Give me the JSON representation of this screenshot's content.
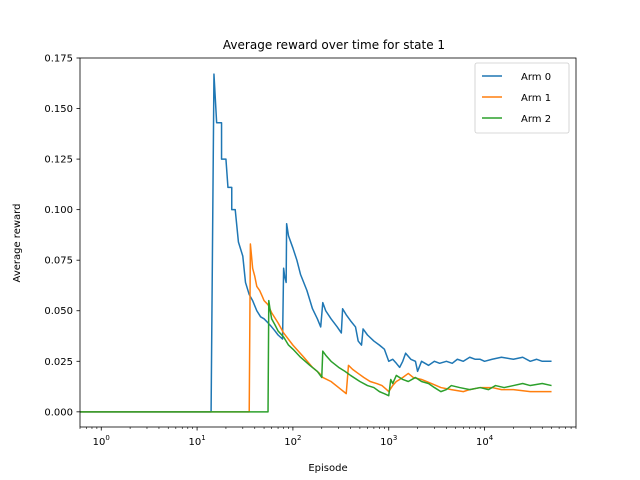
{
  "chart_data": {
    "type": "line",
    "title": "Average reward over time for state 1",
    "xlabel": "Episode",
    "ylabel": "Average reward",
    "xscale": "log",
    "xlim": [
      0.6,
      90000
    ],
    "ylim": [
      -0.0075,
      0.175
    ],
    "grid": false,
    "legend_position": "top-right",
    "x_ticks": [
      {
        "value": 1,
        "base": "10",
        "exp": "0"
      },
      {
        "value": 10,
        "base": "10",
        "exp": "1"
      },
      {
        "value": 100,
        "base": "10",
        "exp": "2"
      },
      {
        "value": 1000,
        "base": "10",
        "exp": "3"
      },
      {
        "value": 10000,
        "base": "10",
        "exp": "4"
      }
    ],
    "y_ticks": [
      "0.000",
      "0.025",
      "0.050",
      "0.075",
      "0.100",
      "0.125",
      "0.150",
      "0.175"
    ],
    "series": [
      {
        "name": "Arm 0",
        "color": "#1f77b4",
        "points": [
          [
            0.6,
            0
          ],
          [
            14,
            0
          ],
          [
            15,
            0.167
          ],
          [
            16,
            0.143
          ],
          [
            18,
            0.143
          ],
          [
            18,
            0.125
          ],
          [
            20,
            0.125
          ],
          [
            21,
            0.111
          ],
          [
            23,
            0.111
          ],
          [
            23,
            0.1
          ],
          [
            25,
            0.1
          ],
          [
            27,
            0.084
          ],
          [
            30,
            0.077
          ],
          [
            32,
            0.064
          ],
          [
            35,
            0.058
          ],
          [
            38,
            0.055
          ],
          [
            42,
            0.05
          ],
          [
            46,
            0.047
          ],
          [
            50,
            0.046
          ],
          [
            55,
            0.044
          ],
          [
            60,
            0.042
          ],
          [
            65,
            0.04
          ],
          [
            70,
            0.038
          ],
          [
            78,
            0.036
          ],
          [
            80,
            0.071
          ],
          [
            82,
            0.067
          ],
          [
            85,
            0.064
          ],
          [
            86,
            0.093
          ],
          [
            90,
            0.087
          ],
          [
            100,
            0.081
          ],
          [
            110,
            0.075
          ],
          [
            120,
            0.068
          ],
          [
            140,
            0.06
          ],
          [
            160,
            0.051
          ],
          [
            180,
            0.046
          ],
          [
            195,
            0.042
          ],
          [
            205,
            0.054
          ],
          [
            220,
            0.05
          ],
          [
            250,
            0.046
          ],
          [
            290,
            0.042
          ],
          [
            320,
            0.039
          ],
          [
            330,
            0.051
          ],
          [
            360,
            0.048
          ],
          [
            400,
            0.045
          ],
          [
            450,
            0.042
          ],
          [
            480,
            0.035
          ],
          [
            520,
            0.033
          ],
          [
            540,
            0.041
          ],
          [
            600,
            0.038
          ],
          [
            700,
            0.035
          ],
          [
            800,
            0.033
          ],
          [
            900,
            0.031
          ],
          [
            1000,
            0.025
          ],
          [
            1100,
            0.026
          ],
          [
            1200,
            0.024
          ],
          [
            1300,
            0.022
          ],
          [
            1400,
            0.025
          ],
          [
            1500,
            0.029
          ],
          [
            1700,
            0.026
          ],
          [
            1900,
            0.025
          ],
          [
            2000,
            0.02
          ],
          [
            2200,
            0.025
          ],
          [
            2600,
            0.023
          ],
          [
            3000,
            0.025
          ],
          [
            3400,
            0.024
          ],
          [
            4000,
            0.025
          ],
          [
            4600,
            0.024
          ],
          [
            5200,
            0.026
          ],
          [
            6000,
            0.025
          ],
          [
            7000,
            0.027
          ],
          [
            8000,
            0.026
          ],
          [
            9000,
            0.026
          ],
          [
            10000,
            0.025
          ],
          [
            12000,
            0.026
          ],
          [
            15000,
            0.027
          ],
          [
            20000,
            0.026
          ],
          [
            25000,
            0.027
          ],
          [
            30000,
            0.025
          ],
          [
            35000,
            0.026
          ],
          [
            40000,
            0.025
          ],
          [
            45000,
            0.025
          ],
          [
            50000,
            0.025
          ]
        ]
      },
      {
        "name": "Arm 1",
        "color": "#ff7f0e",
        "points": [
          [
            0.6,
            0
          ],
          [
            35,
            0
          ],
          [
            36,
            0.083
          ],
          [
            37,
            0.077
          ],
          [
            38,
            0.071
          ],
          [
            40,
            0.067
          ],
          [
            42,
            0.062
          ],
          [
            45,
            0.06
          ],
          [
            48,
            0.057
          ],
          [
            50,
            0.055
          ],
          [
            55,
            0.053
          ],
          [
            60,
            0.049
          ],
          [
            70,
            0.044
          ],
          [
            80,
            0.039
          ],
          [
            100,
            0.033
          ],
          [
            130,
            0.027
          ],
          [
            160,
            0.022
          ],
          [
            190,
            0.019
          ],
          [
            205,
            0.017
          ],
          [
            250,
            0.015
          ],
          [
            300,
            0.012
          ],
          [
            360,
            0.009
          ],
          [
            380,
            0.023
          ],
          [
            420,
            0.021
          ],
          [
            480,
            0.019
          ],
          [
            550,
            0.017
          ],
          [
            640,
            0.015
          ],
          [
            750,
            0.014
          ],
          [
            850,
            0.013
          ],
          [
            950,
            0.011
          ],
          [
            1000,
            0.01
          ],
          [
            1100,
            0.013
          ],
          [
            1200,
            0.015
          ],
          [
            1300,
            0.016
          ],
          [
            1400,
            0.017
          ],
          [
            1600,
            0.019
          ],
          [
            1800,
            0.017
          ],
          [
            2200,
            0.016
          ],
          [
            2800,
            0.014
          ],
          [
            3500,
            0.012
          ],
          [
            4500,
            0.011
          ],
          [
            6000,
            0.01
          ],
          [
            7000,
            0.011
          ],
          [
            9000,
            0.012
          ],
          [
            12000,
            0.012
          ],
          [
            15000,
            0.011
          ],
          [
            20000,
            0.011
          ],
          [
            30000,
            0.01
          ],
          [
            40000,
            0.01
          ],
          [
            50000,
            0.01
          ]
        ]
      },
      {
        "name": "Arm 2",
        "color": "#2ca02c",
        "points": [
          [
            0.6,
            0
          ],
          [
            55,
            0
          ],
          [
            56,
            0.055
          ],
          [
            58,
            0.05
          ],
          [
            60,
            0.046
          ],
          [
            65,
            0.043
          ],
          [
            70,
            0.04
          ],
          [
            80,
            0.037
          ],
          [
            90,
            0.033
          ],
          [
            100,
            0.031
          ],
          [
            120,
            0.027
          ],
          [
            150,
            0.023
          ],
          [
            180,
            0.02
          ],
          [
            200,
            0.017
          ],
          [
            205,
            0.03
          ],
          [
            220,
            0.028
          ],
          [
            250,
            0.025
          ],
          [
            300,
            0.022
          ],
          [
            350,
            0.02
          ],
          [
            400,
            0.018
          ],
          [
            500,
            0.015
          ],
          [
            600,
            0.013
          ],
          [
            700,
            0.012
          ],
          [
            800,
            0.01
          ],
          [
            900,
            0.009
          ],
          [
            1000,
            0.008
          ],
          [
            1050,
            0.016
          ],
          [
            1100,
            0.014
          ],
          [
            1200,
            0.018
          ],
          [
            1400,
            0.016
          ],
          [
            1600,
            0.015
          ],
          [
            1900,
            0.017
          ],
          [
            2200,
            0.015
          ],
          [
            2600,
            0.014
          ],
          [
            3000,
            0.012
          ],
          [
            3500,
            0.01
          ],
          [
            4000,
            0.011
          ],
          [
            4500,
            0.013
          ],
          [
            5500,
            0.012
          ],
          [
            7000,
            0.011
          ],
          [
            9000,
            0.012
          ],
          [
            11000,
            0.011
          ],
          [
            13000,
            0.013
          ],
          [
            16000,
            0.012
          ],
          [
            20000,
            0.013
          ],
          [
            25000,
            0.014
          ],
          [
            30000,
            0.013
          ],
          [
            40000,
            0.014
          ],
          [
            50000,
            0.013
          ]
        ]
      }
    ]
  }
}
